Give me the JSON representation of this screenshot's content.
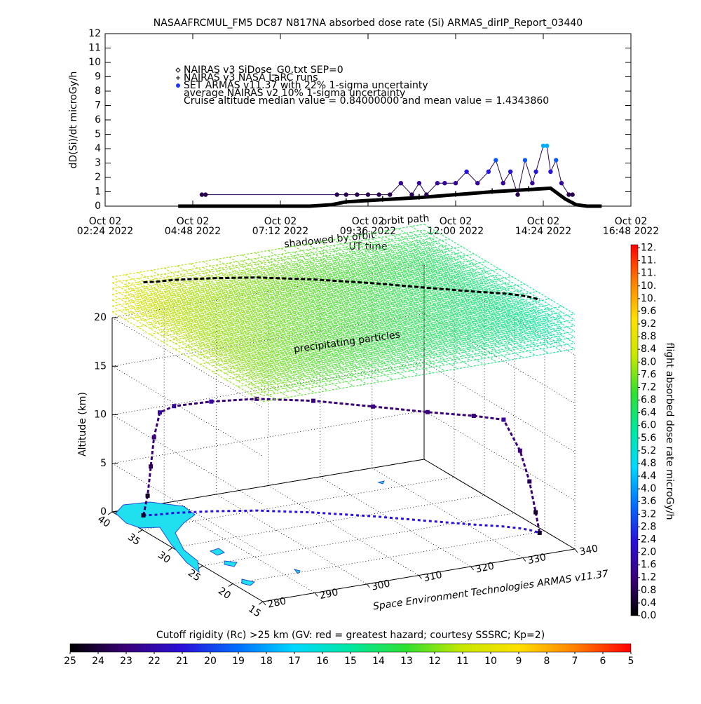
{
  "chart_data": [
    {
      "type": "line",
      "title": "NASAAFRCMUL_FM5 DC87 N817NA absorbed dose rate (Si) ARMAS_dirIP_Report_03440",
      "ylabel": "dD(Si)/dt microGy/h",
      "xlabel": "UT time",
      "annotations": [
        "orbit path",
        "shadowed by orbit"
      ],
      "xlim": [
        2.4,
        16.8
      ],
      "xticks": [
        {
          "value": 2.4,
          "label": [
            "Oct 02",
            "02:24 2022"
          ]
        },
        {
          "value": 4.8,
          "label": [
            "Oct 02",
            "04:48 2022"
          ]
        },
        {
          "value": 7.2,
          "label": [
            "Oct 02",
            "07:12 2022"
          ]
        },
        {
          "value": 9.6,
          "label": [
            "Oct 02",
            "09:36 2022"
          ]
        },
        {
          "value": 12.0,
          "label": [
            "Oct 02",
            "12:00 2022"
          ]
        },
        {
          "value": 14.4,
          "label": [
            "Oct 02",
            "14:24 2022"
          ]
        },
        {
          "value": 16.8,
          "label": [
            "Oct 02",
            "16:48 2022"
          ]
        }
      ],
      "ylim": [
        0,
        12
      ],
      "yticks": [
        0,
        1,
        2,
        3,
        4,
        5,
        6,
        7,
        8,
        9,
        10,
        11,
        12
      ],
      "series": [
        {
          "name": "NAIRAS v3 SiDose_G0.txt SEP=0",
          "color": "#000000",
          "marker": "diamond",
          "x": [
            4.4,
            8.0,
            8.6,
            9.0,
            10.0,
            11.0,
            12.0,
            13.0,
            14.0,
            14.6,
            15.0,
            15.3,
            15.6,
            16.0
          ],
          "values": [
            0,
            0,
            0.1,
            0.3,
            0.45,
            0.6,
            0.8,
            1.0,
            1.15,
            1.25,
            0.5,
            0.1,
            0,
            0
          ]
        },
        {
          "name": "NAIRAS v3 NASA LaRC runs",
          "color": "#000000",
          "marker": "plus",
          "x": [
            9.0,
            10.0,
            11.0,
            12.0,
            13.0,
            14.0
          ],
          "values": [
            0.35,
            0.5,
            0.65,
            0.85,
            1.05,
            1.2
          ]
        },
        {
          "name": "SET ARMAS v11.37 with 22% 1-sigma uncertainty",
          "color": "#2030ff",
          "marker": "dot",
          "color_by_value": true,
          "x": [
            5.05,
            5.15,
            8.75,
            9.0,
            9.3,
            9.6,
            9.9,
            10.2,
            10.5,
            10.8,
            11.0,
            11.2,
            11.5,
            11.7,
            12.0,
            12.3,
            12.6,
            12.9,
            13.1,
            13.3,
            13.5,
            13.7,
            13.9,
            14.1,
            14.2,
            14.4,
            14.5,
            14.6,
            14.75,
            14.9,
            15.1,
            15.2
          ],
          "values": [
            0.8,
            0.8,
            0.8,
            0.8,
            0.8,
            0.8,
            0.8,
            0.8,
            1.6,
            0.8,
            1.6,
            0.8,
            1.6,
            1.6,
            1.6,
            2.4,
            1.6,
            2.4,
            3.2,
            1.6,
            2.4,
            0.8,
            3.2,
            1.6,
            2.4,
            4.2,
            4.2,
            2.4,
            3.2,
            1.6,
            0.8,
            0.8
          ]
        }
      ],
      "legend_notes": [
        "average NAIRAS v2 10% 1-sigma uncertainty",
        "Cruise altitude median value = 0.84000000 and mean value = 1.4343860"
      ]
    },
    {
      "type": "scatter3d",
      "zlabel": "Altitude (km)",
      "annotation": "precipitating particles",
      "credit": "Space Environment Technologies ARMAS v11.37",
      "xlim": [
        280,
        340
      ],
      "xticks": [
        280,
        290,
        300,
        310,
        320,
        330,
        340
      ],
      "ylim": [
        40,
        15
      ],
      "yticks": [
        40,
        35,
        30,
        25,
        20,
        15
      ],
      "zlim": [
        0,
        20
      ],
      "zticks": [
        0,
        5,
        10,
        15,
        20
      ],
      "track": {
        "lon": [
          283.8,
          284.5,
          285,
          285.5,
          286.5,
          289,
          295,
          302,
          310,
          318,
          325,
          331,
          335,
          337,
          338,
          338.5,
          338.8
        ],
        "lat": [
          38.1,
          38.0,
          37.9,
          37.8,
          37.7,
          37.5,
          36.5,
          35,
          32.5,
          29.5,
          26.5,
          24,
          22.5,
          21.5,
          20.8,
          20.2,
          19.8
        ],
        "alt": [
          0,
          2,
          5,
          8,
          10.5,
          11,
          11.3,
          11.5,
          11.5,
          11.3,
          11.2,
          11.2,
          11,
          8,
          5,
          2,
          0
        ],
        "dose": [
          0.4,
          0.4,
          0.8,
          1.2,
          1.6,
          1.6,
          1.6,
          1.2,
          1.2,
          1.2,
          1.2,
          1.2,
          1.6,
          1.2,
          0.8,
          0.4,
          0.4
        ]
      }
    },
    {
      "type": "colorbar",
      "orientation": "vertical",
      "label": "flight absorbed dose rate microGy/h",
      "lim": [
        0,
        11.7
      ],
      "colormap": [
        "#000000",
        "#3a0078",
        "#2a10d8",
        "#0070ff",
        "#00d8ff",
        "#00e8a0",
        "#30e030",
        "#c8e800",
        "#ffe000",
        "#ff8000",
        "#ff0000"
      ],
      "ticks": [
        {
          "value": 0,
          "label": "0.0"
        },
        {
          "value": 0.4,
          "label": "0.4"
        },
        {
          "value": 0.8,
          "label": "0.8"
        },
        {
          "value": 1.2,
          "label": "1.2"
        },
        {
          "value": 1.6,
          "label": "1.6"
        },
        {
          "value": 2.0,
          "label": "2.0"
        },
        {
          "value": 2.4,
          "label": "2.4"
        },
        {
          "value": 2.8,
          "label": "2.8"
        },
        {
          "value": 3.2,
          "label": "3.2"
        },
        {
          "value": 3.6,
          "label": "3.6"
        },
        {
          "value": 4.0,
          "label": "4.0"
        },
        {
          "value": 4.4,
          "label": "4.4"
        },
        {
          "value": 4.8,
          "label": "4.8"
        },
        {
          "value": 5.2,
          "label": "5.2"
        },
        {
          "value": 5.6,
          "label": "5.6"
        },
        {
          "value": 6.0,
          "label": "6.0"
        },
        {
          "value": 6.4,
          "label": "6.4"
        },
        {
          "value": 6.8,
          "label": "6.8"
        },
        {
          "value": 7.2,
          "label": "7.2"
        },
        {
          "value": 7.6,
          "label": "7.6"
        },
        {
          "value": 8.0,
          "label": "8.0"
        },
        {
          "value": 8.4,
          "label": "8.4"
        },
        {
          "value": 8.8,
          "label": "8.8"
        },
        {
          "value": 9.2,
          "label": "9.2"
        },
        {
          "value": 9.6,
          "label": "9.6"
        },
        {
          "value": 10.0,
          "label": "10."
        },
        {
          "value": 10.4,
          "label": "10."
        },
        {
          "value": 10.8,
          "label": "11."
        },
        {
          "value": 11.2,
          "label": "11."
        },
        {
          "value": 11.6,
          "label": "12."
        }
      ]
    },
    {
      "type": "colorbar",
      "orientation": "horizontal",
      "title": "Cutoff rigidity (Rc) >25 km (GV: red = greatest hazard; courtesy SSSRC; Kp=2)",
      "lim": [
        25,
        5
      ],
      "colormap": [
        "#000000",
        "#3a0078",
        "#2a10d8",
        "#0070ff",
        "#00d8ff",
        "#00e8a0",
        "#30e030",
        "#c8e800",
        "#ffe000",
        "#ff8000",
        "#ff0000"
      ],
      "ticks": [
        25,
        24,
        23,
        22,
        21,
        20,
        19,
        18,
        17,
        16,
        15,
        14,
        13,
        12,
        11,
        10,
        9,
        8,
        7,
        6,
        5
      ]
    }
  ]
}
